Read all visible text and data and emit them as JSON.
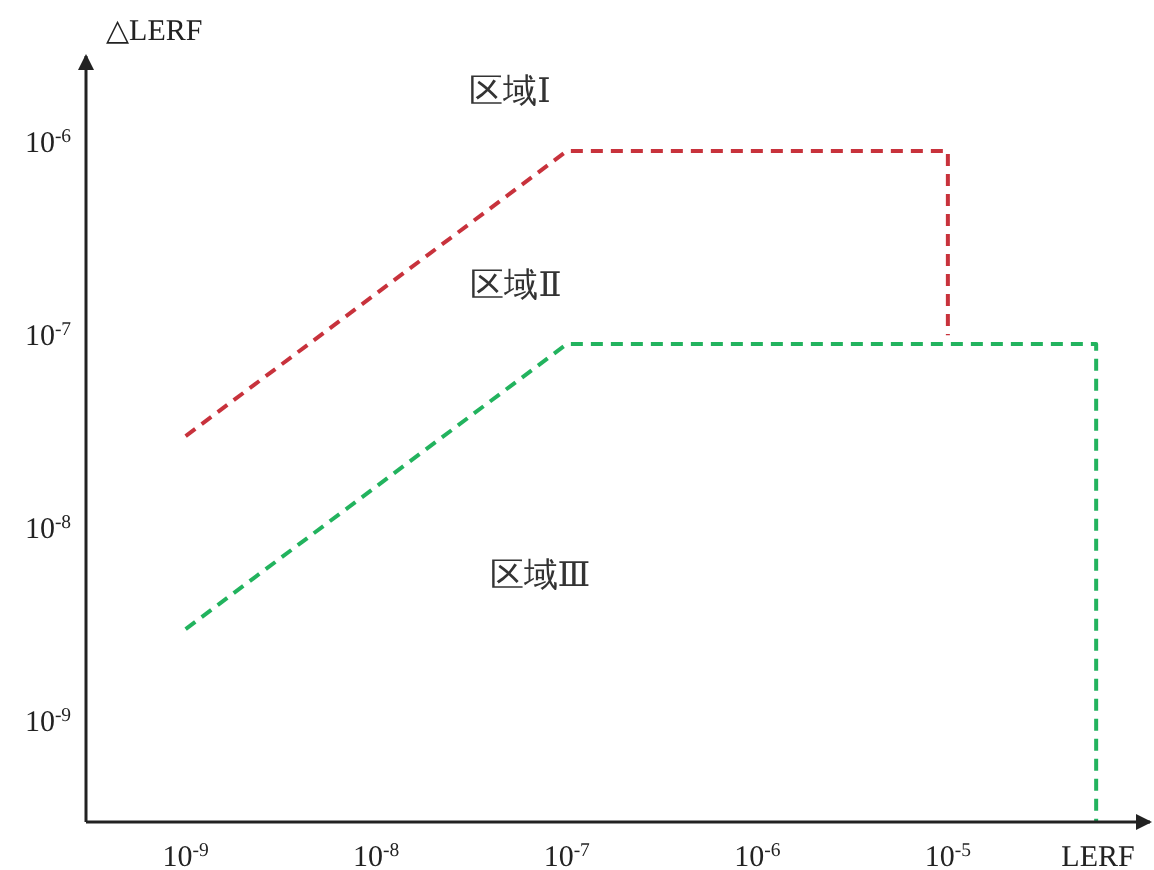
{
  "chart_data": {
    "type": "line",
    "xlabel": "LERF",
    "ylabel": "△LERF",
    "log": "xy",
    "line_style": "dashed",
    "marker": "none",
    "grid": false,
    "xlim": [
      3e-10,
      0.000115
    ],
    "ylim": [
      3e-10,
      2.8e-06
    ],
    "xticks": [
      {
        "value": 1e-09,
        "label": "10$^{-9}$"
      },
      {
        "value": 1e-08,
        "label": "10$^{-8}$"
      },
      {
        "value": 1e-07,
        "label": "10$^{-7}$"
      },
      {
        "value": 1e-06,
        "label": "10$^{-6}$"
      },
      {
        "value": 1e-05,
        "label": "10$^{-5}$"
      }
    ],
    "yticks": [
      {
        "value": 1e-09,
        "label": "10$^{-9}$"
      },
      {
        "value": 1e-08,
        "label": "10$^{-8}$"
      },
      {
        "value": 1e-07,
        "label": "10$^{-7}$"
      },
      {
        "value": 1e-06,
        "label": "10$^{-6}$"
      }
    ],
    "series": [
      {
        "color": "#c8323c",
        "x": [
          1e-09,
          1e-07,
          1e-05,
          1e-05
        ],
        "values": [
          3e-08,
          9e-07,
          9e-07,
          1e-07
        ]
      },
      {
        "color": "#22b35e",
        "x": [
          1e-09,
          1e-07,
          6e-05,
          6e-05
        ],
        "values": [
          3e-09,
          9e-08,
          9e-08,
          3e-10
        ]
      }
    ],
    "annotations": [
      "区域Ⅰ",
      "区域Ⅱ",
      "区域Ⅲ"
    ]
  }
}
